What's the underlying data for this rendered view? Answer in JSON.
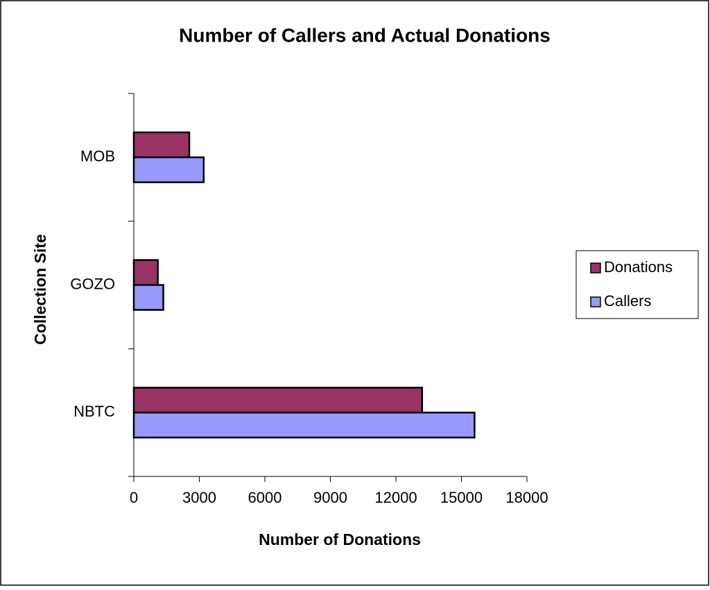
{
  "chart_data": {
    "type": "hbar",
    "title": "Number of Callers and Actual Donations",
    "x_label": "Number of Donations",
    "y_label": "Collection Site",
    "categories": [
      "NBTC",
      "GOZO",
      "MOB"
    ],
    "series": [
      {
        "name": "Donations",
        "color": "#993366",
        "values": [
          13200,
          1100,
          2540
        ]
      },
      {
        "name": "Callers",
        "color": "#9999ff",
        "values": [
          15600,
          1350,
          3200
        ]
      }
    ],
    "xlim": [
      0,
      18000
    ],
    "xticks": [
      0,
      3000,
      6000,
      9000,
      12000,
      15000,
      18000
    ],
    "legend": "right"
  }
}
